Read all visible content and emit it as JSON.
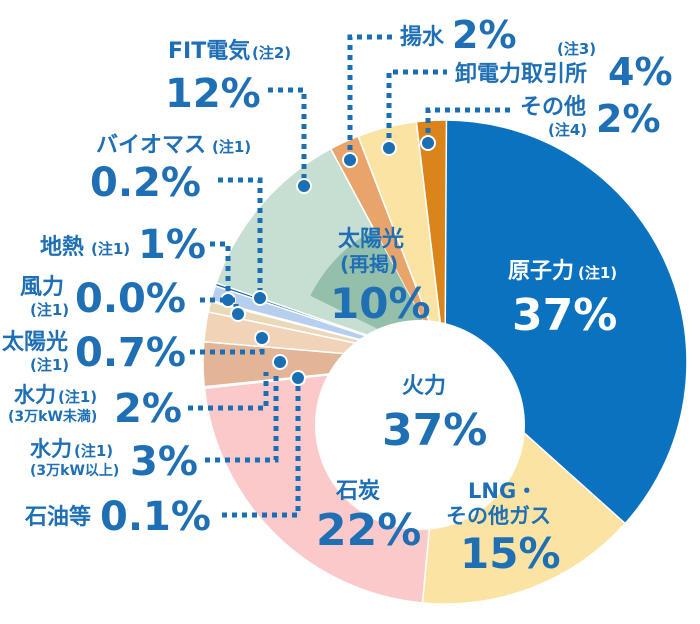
{
  "chart_data": {
    "type": "pie",
    "title": "",
    "unit": "%",
    "slices": [
      {
        "key": "nuclear",
        "label": "原子力",
        "note": "(注1)",
        "value": 37,
        "value_label": "37%",
        "color": "#0b72c0"
      },
      {
        "key": "lng",
        "label": "LNG・その他ガス",
        "value": 15,
        "value_label": "15%",
        "color": "#fbe3a4"
      },
      {
        "key": "coal",
        "label": "石炭",
        "value": 22,
        "value_label": "22%",
        "color": "#fcc9cb"
      },
      {
        "key": "oil",
        "label": "石油等",
        "value": 0.1,
        "value_label": "0.1%",
        "color": "#f3a2a8"
      },
      {
        "key": "hydro_small",
        "label": "水力",
        "note": "(注1)",
        "sub": "(3万kW以上)",
        "value": 3,
        "value_label": "3%",
        "color": "#e3b496"
      },
      {
        "key": "hydro_large",
        "label": "水力",
        "note": "(注1)",
        "sub": "(3万kW未満)",
        "value": 2,
        "value_label": "2%",
        "color": "#f1d3b8"
      },
      {
        "key": "solar_self",
        "label": "太陽光",
        "note": "(注1)",
        "value": 0.7,
        "value_label": "0.7%",
        "color": "#ead9b9"
      },
      {
        "key": "wind",
        "label": "風力",
        "note": "(注1)",
        "value": 0.0,
        "value_label": "0.0%",
        "color": "#cde0f2"
      },
      {
        "key": "geothermal",
        "label": "地熱",
        "note": "(注1)",
        "value": 1,
        "value_label": "1%",
        "color": "#b7cfee"
      },
      {
        "key": "biomass",
        "label": "バイオマス",
        "note": "(注1)",
        "value": 0.2,
        "value_label": "0.2%",
        "color": "#1a62ae"
      },
      {
        "key": "fit",
        "label": "FIT電気",
        "note": "(注2)",
        "value": 12,
        "value_label": "12%",
        "color": "#c7dfd2"
      },
      {
        "key": "solar_fit",
        "label": "太陽光",
        "sub": "(再掲)",
        "value": 10,
        "value_label": "10%",
        "color": "#94bfab"
      },
      {
        "key": "pumped",
        "label": "揚水",
        "value": 2,
        "value_label": "2%",
        "color": "#e9a46c"
      },
      {
        "key": "wholesale",
        "label": "卸電力取引所",
        "note": "(注3)",
        "value": 4,
        "value_label": "4%",
        "color": "#fbe3a4"
      },
      {
        "key": "other",
        "label": "その他",
        "note": "(注4)",
        "value": 2,
        "value_label": "2%",
        "color": "#db8419"
      }
    ],
    "inner": {
      "thermal": {
        "label": "火力",
        "value": 37,
        "value_label": "37%"
      }
    }
  },
  "colors": {
    "text_blue": "#1f6fb5",
    "leader": "#1a6fb4"
  }
}
